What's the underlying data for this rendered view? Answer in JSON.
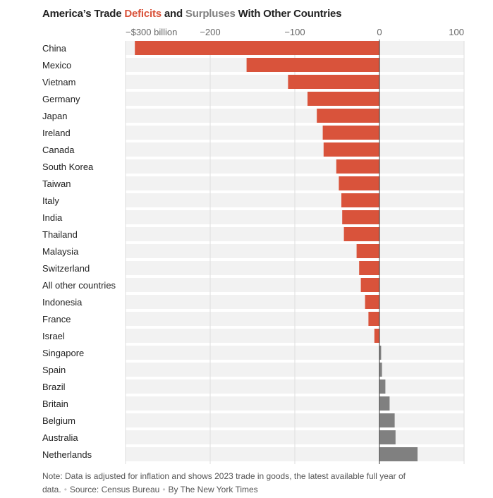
{
  "title": {
    "part1": "America’s Trade ",
    "deficits": "Deficits",
    "part2": " and ",
    "surpluses": "Surpluses",
    "part3": " With Other Countries"
  },
  "colors": {
    "deficit": "#d9533b",
    "surplus": "#808080",
    "row_background": "#f2f2f2",
    "gridline": "#dddddd",
    "zero_line": "#333333"
  },
  "chart_data": {
    "type": "bar",
    "orientation": "horizontal",
    "title": "America’s Trade Deficits and Surpluses With Other Countries",
    "xlim": [
      -300,
      100
    ],
    "ticks": [
      {
        "value": -300,
        "label": "−$300 billion"
      },
      {
        "value": -200,
        "label": "−200"
      },
      {
        "value": -100,
        "label": "−100"
      },
      {
        "value": 0,
        "label": "0"
      },
      {
        "value": 100,
        "label": "100"
      }
    ],
    "categories": [
      "China",
      "Mexico",
      "Vietnam",
      "Germany",
      "Japan",
      "Ireland",
      "Canada",
      "South Korea",
      "Taiwan",
      "Italy",
      "India",
      "Thailand",
      "Malaysia",
      "Switzerland",
      "All other countries",
      "Indonesia",
      "France",
      "Israel",
      "Singapore",
      "Spain",
      "Brazil",
      "Britain",
      "Belgium",
      "Australia",
      "Netherlands"
    ],
    "values": [
      -289,
      -157,
      -108,
      -85,
      -74,
      -67,
      -66,
      -51,
      -48,
      -45,
      -44,
      -42,
      -27,
      -24,
      -22,
      -17,
      -13,
      -6,
      2,
      3,
      7,
      12,
      18,
      19,
      45
    ]
  },
  "note": {
    "text": "Note: Data is adjusted for inflation and shows 2023 trade in goods, the latest available full year of data.",
    "source": "Source: Census Bureau",
    "credit": "By The New York Times"
  }
}
